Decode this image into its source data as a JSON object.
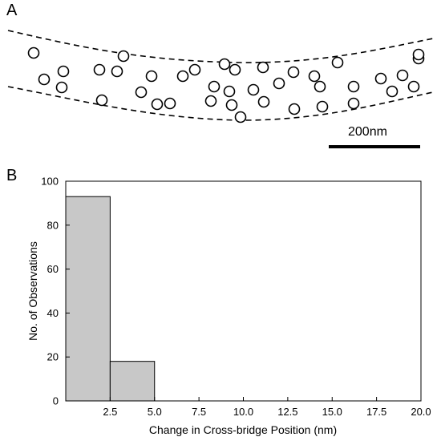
{
  "panel_a": {
    "label": "A",
    "scale_bar_label": "200nm"
  },
  "panel_b": {
    "label": "B"
  },
  "chart_data": {
    "type": "bar",
    "title": "",
    "xlabel": "Change in Cross-bridge Position (nm)",
    "ylabel": "No. of Observations",
    "bins": [
      {
        "from": 0,
        "to": 2.5,
        "value": 93
      },
      {
        "from": 2.5,
        "to": 5.0,
        "value": 18
      }
    ],
    "xlim": [
      0,
      20.0
    ],
    "ylim": [
      0,
      100
    ],
    "xticks": [
      "2.5",
      "5.0",
      "7.5",
      "10.0",
      "12.5",
      "15.0",
      "17.5",
      "20.0"
    ],
    "yticks": [
      "0",
      "20",
      "40",
      "60",
      "80",
      "100"
    ],
    "grid": false,
    "bar_color": "#c8c8c8"
  }
}
